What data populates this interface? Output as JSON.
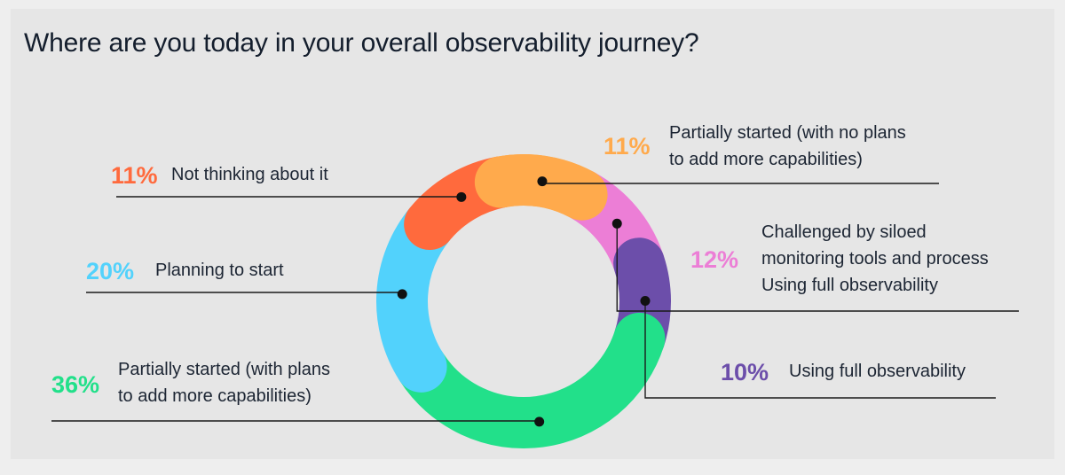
{
  "title": "Where are you today in your overall observability journey?",
  "chart_data": {
    "type": "pie",
    "variant": "donut",
    "unit": "%",
    "slices": [
      {
        "label": "Partially started (with no plans to add more capabilities)",
        "lines": [
          "Partially started (with no plans",
          "to add more capabilities)"
        ],
        "value": 11,
        "display": "11%",
        "color": "#ffaa4c"
      },
      {
        "label": "Challenged by siloed monitoring tools and process Using full observability",
        "lines": [
          "Challenged by siloed",
          "monitoring tools and process",
          "Using full observability"
        ],
        "value": 12,
        "display": "12%",
        "color": "#ec7ed6"
      },
      {
        "label": "Using full observability",
        "lines": [
          "Using full observability"
        ],
        "value": 10,
        "display": "10%",
        "color": "#6c4eaa"
      },
      {
        "label": "Partially started (with plans to add more capabilities)",
        "lines": [
          "Partially started (with plans",
          "to add more capabilities)"
        ],
        "value": 36,
        "display": "36%",
        "color": "#22e08a"
      },
      {
        "label": "Planning to start",
        "lines": [
          "Planning to start"
        ],
        "value": 20,
        "display": "20%",
        "color": "#52d2fc"
      },
      {
        "label": "Not thinking about it",
        "lines": [
          "Not thinking about it"
        ],
        "value": 11,
        "display": "11%",
        "color": "#ff6a3d"
      }
    ],
    "legend": "callouts around donut"
  }
}
